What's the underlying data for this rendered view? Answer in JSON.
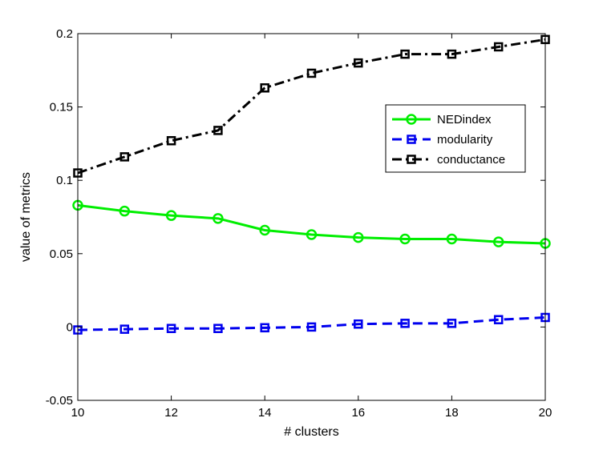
{
  "chart_data": {
    "type": "line",
    "title": "",
    "xlabel": "# clusters",
    "ylabel": "value of metrics",
    "xlim": [
      10,
      20
    ],
    "ylim": [
      -0.05,
      0.2
    ],
    "xticks": [
      10,
      12,
      14,
      16,
      18,
      20
    ],
    "yticks": [
      -0.05,
      0,
      0.05,
      0.1,
      0.15,
      0.2
    ],
    "xtick_labels": [
      "10",
      "12",
      "14",
      "16",
      "18",
      "20"
    ],
    "ytick_labels": [
      "-0.05",
      "0",
      "0.05",
      "0.1",
      "0.15",
      "0.2"
    ],
    "grid": false,
    "legend_position": "right",
    "x": [
      10,
      11,
      12,
      13,
      14,
      15,
      16,
      17,
      18,
      19,
      20
    ],
    "series": [
      {
        "name": "NEDindex",
        "color": "#00ee00",
        "line_style": "solid",
        "marker": "circle",
        "values": [
          0.083,
          0.079,
          0.076,
          0.074,
          0.066,
          0.063,
          0.061,
          0.06,
          0.06,
          0.058,
          0.057
        ]
      },
      {
        "name": "modularity",
        "color": "#0000ee",
        "line_style": "dashed",
        "marker": "square",
        "values": [
          -0.002,
          -0.0015,
          -0.001,
          -0.001,
          -0.0005,
          0.0,
          0.002,
          0.0025,
          0.0025,
          0.005,
          0.0065
        ]
      },
      {
        "name": "conductance",
        "color": "#000000",
        "line_style": "dashdot",
        "marker": "square",
        "values": [
          0.105,
          0.116,
          0.127,
          0.134,
          0.163,
          0.173,
          0.18,
          0.186,
          0.186,
          0.191,
          0.196
        ]
      }
    ]
  }
}
